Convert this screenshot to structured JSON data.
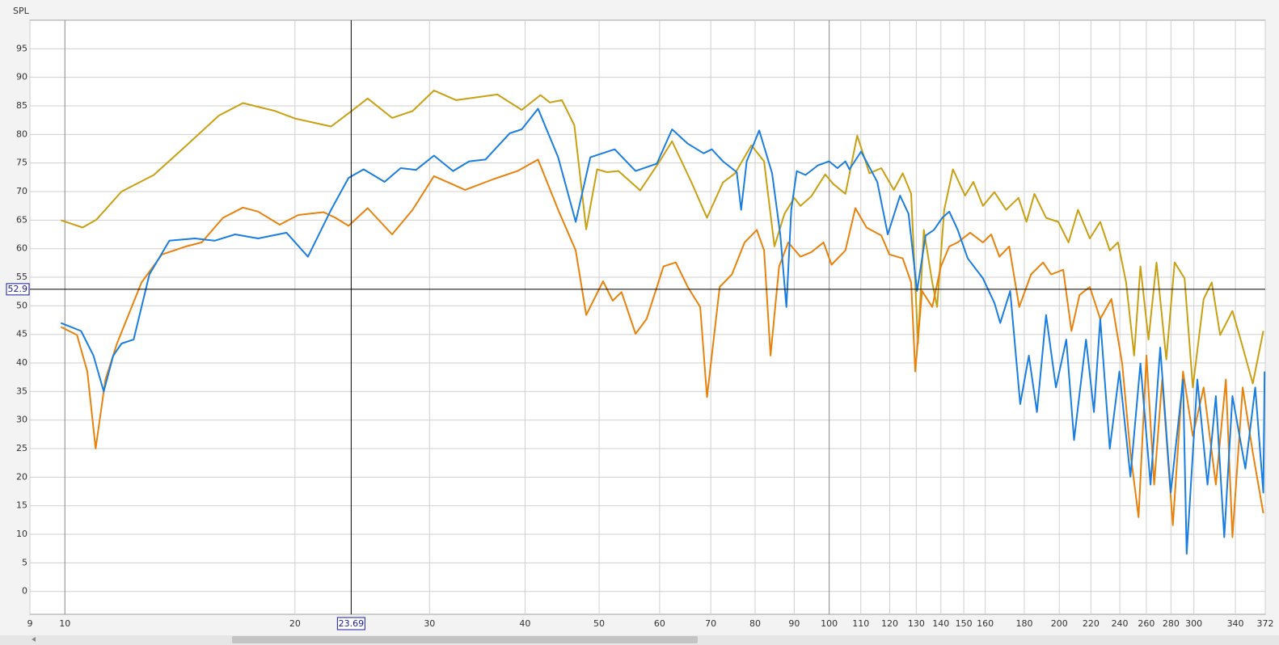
{
  "chart_data": {
    "type": "line",
    "y_label": "SPL",
    "xscale": "log",
    "grid": true,
    "xlim": [
      9,
      372
    ],
    "ylim": [
      -4,
      100
    ],
    "xticks": [
      9,
      10,
      20,
      30,
      40,
      50,
      60,
      70,
      80,
      90,
      100,
      110,
      120,
      130,
      140,
      150,
      160,
      180,
      200,
      220,
      240,
      260,
      280,
      300,
      340,
      372
    ],
    "yticks": [
      0,
      5,
      10,
      15,
      20,
      25,
      30,
      35,
      40,
      45,
      50,
      55,
      60,
      65,
      70,
      75,
      80,
      85,
      90,
      95
    ],
    "cursor": {
      "x": 23.69,
      "y": 52.9
    },
    "series": [
      {
        "color": "#c9a012",
        "x": [
          9.88,
          10.55,
          11.0,
          11.86,
          13.07,
          14.4,
          15.9,
          17.1,
          18.85,
          20.0,
          22.3,
          23.77,
          24.9,
          26.8,
          28.5,
          30.4,
          32.5,
          36.8,
          39.6,
          41.9,
          43.1,
          44.7,
          46.4,
          48.1,
          49.7,
          51.2,
          53.0,
          56.6,
          60.0,
          62.3,
          66.0,
          69.2,
          72.6,
          75.3,
          79.1,
          82.2,
          84.8,
          87.4,
          90.0,
          91.7,
          94.8,
          98.8,
          101.3,
          105,
          108.8,
          112.9,
          117.0,
          121.5,
          124.8,
          128,
          130.7,
          133,
          136.4,
          138.4,
          141.4,
          145.2,
          150.6,
          154.4,
          158.9,
          164.5,
          170.4,
          176.9,
          181.2,
          185.6,
          192.2,
          199.4,
          205.7,
          211.6,
          219.3,
          226.3,
          232.9,
          238.7,
          244.6,
          250.6,
          255.4,
          261.7,
          268.1,
          276.1,
          283.1,
          291.7,
          299.1,
          309.0,
          316.6,
          324.7,
          337.0,
          345.4,
          358.3,
          369.8
        ],
        "values": [
          65.0,
          63.7,
          65.1,
          70,
          72.9,
          78,
          83.3,
          85.5,
          84.1,
          82.8,
          81.4,
          84.2,
          86.3,
          82.9,
          84.1,
          87.7,
          86.0,
          87.0,
          84.3,
          86.9,
          85.6,
          86.0,
          81.6,
          63.4,
          73.9,
          73.4,
          73.6,
          70.2,
          75.3,
          78.8,
          71.7,
          65.4,
          71.6,
          73.2,
          78.1,
          75.3,
          60.4,
          66.1,
          68.9,
          67.5,
          69.2,
          73.0,
          71.3,
          69.6,
          79.8,
          73.2,
          74.1,
          70.3,
          73.2,
          69.6,
          43.4,
          63.3,
          54.1,
          49.8,
          66.8,
          73.9,
          69.3,
          71.7,
          67.5,
          69.9,
          66.8,
          68.9,
          64.7,
          69.6,
          65.4,
          64.7,
          61.1,
          66.8,
          61.8,
          64.7,
          59.7,
          61.1,
          54.1,
          41.3,
          56.9,
          44.1,
          57.6,
          40.6,
          57.6,
          54.8,
          35.7,
          51.2,
          54.1,
          44.9,
          49.1,
          44.1,
          36.4,
          45.6
        ]
      },
      {
        "color": "#e8820c",
        "x": [
          9.88,
          10.37,
          10.7,
          10.97,
          11.3,
          11.7,
          12.6,
          13.4,
          14.4,
          15.1,
          16.1,
          17.1,
          17.9,
          19.1,
          20.2,
          21.8,
          22.6,
          23.5,
          24.9,
          26.8,
          28.5,
          30.4,
          33.4,
          36.4,
          39.1,
          41.6,
          44.2,
          46.6,
          48.1,
          50.6,
          52.1,
          53.5,
          55.8,
          57.7,
          60.7,
          63.0,
          65.3,
          67.8,
          69.2,
          71.9,
          74.6,
          77.5,
          80.4,
          82.2,
          83.8,
          86.0,
          88.4,
          91.7,
          94.8,
          98.3,
          100.7,
          105,
          108.2,
          111.9,
          117.0,
          119.9,
          124.8,
          128.0,
          129.6,
          132.3,
          136.4,
          140.0,
          143.6,
          147.3,
          152.9,
          158.9,
          162.9,
          167.0,
          172.0,
          177.3,
          183.7,
          190.5,
          195.2,
          202.4,
          207.5,
          212.6,
          219.3,
          226.3,
          234.0,
          241.7,
          247.8,
          254,
          260.1,
          266.2,
          272.7,
          281.6,
          290.4,
          299.1,
          309.0,
          320.6,
          330.4,
          337.0,
          347.6,
          358.3,
          369.8
        ],
        "values": [
          46.3,
          44.9,
          38.5,
          25.0,
          37.1,
          43.4,
          54.1,
          59.0,
          60.4,
          61.1,
          65.4,
          67.2,
          66.5,
          64.2,
          65.9,
          66.4,
          65.4,
          64.0,
          67.1,
          62.5,
          66.8,
          72.7,
          70.3,
          72.2,
          73.6,
          75.6,
          66.8,
          59.7,
          48.4,
          54.3,
          50.9,
          52.4,
          45.1,
          47.7,
          56.9,
          57.6,
          53.3,
          49.8,
          34.0,
          53.3,
          55.5,
          61.1,
          63.3,
          59.7,
          41.3,
          56.9,
          61.1,
          58.6,
          59.4,
          61.1,
          57.2,
          59.7,
          67.1,
          63.7,
          62.3,
          59.0,
          58.3,
          54.1,
          38.5,
          52.6,
          49.8,
          56.9,
          60.4,
          61.1,
          62.8,
          61.1,
          62.5,
          58.6,
          60.4,
          49.8,
          55.5,
          57.6,
          55.5,
          56.3,
          45.6,
          51.9,
          53.3,
          47.7,
          51.2,
          39.9,
          24.3,
          13.0,
          41.3,
          18.7,
          37.1,
          11.6,
          38.5,
          27.2,
          35.7,
          18.7,
          37.1,
          9.5,
          35.7,
          24.3,
          13.7
        ]
      },
      {
        "color": "#1a7de0",
        "x": [
          9.88,
          10.5,
          10.9,
          11.24,
          11.57,
          11.86,
          12.3,
          12.9,
          13.7,
          14.8,
          15.7,
          16.7,
          17.9,
          19.5,
          20.8,
          22.3,
          23.5,
          24.6,
          26.2,
          27.5,
          28.8,
          30.4,
          32.2,
          33.8,
          35.5,
          38.2,
          39.6,
          41.6,
          44.2,
          46.6,
          48.7,
          52.4,
          55.8,
          59.5,
          62.3,
          65.3,
          68.5,
          70.2,
          72.6,
          75.7,
          76.7,
          78.0,
          81.0,
          84.2,
          86.3,
          87.9,
          89.2,
          90.7,
          93.1,
          96.7,
          100,
          102.5,
          105,
          106.3,
          110.1,
          115.6,
          119.3,
          123.8,
          127.0,
          130.3,
          133.7,
          137.1,
          140.6,
          143.6,
          147.3,
          151.8,
          158.9,
          164.5,
          167.4,
          172.5,
          177.8,
          182.5,
          187.0,
          192.2,
          198.0,
          204.3,
          209.1,
          216.8,
          222.0,
          226.3,
          232.9,
          239.7,
          247.8,
          255.4,
          263.3,
          271.1,
          279.8,
          290.4,
          293.6,
          303.2,
          312.6,
          320.6,
          328.8,
          337.0,
          350.4,
          360.9,
          369.8,
          371.3
        ],
        "values": [
          47.0,
          45.6,
          41.3,
          35.0,
          41.3,
          43.4,
          44.1,
          55.5,
          61.4,
          61.8,
          61.4,
          62.5,
          61.8,
          62.8,
          58.6,
          66.8,
          72.4,
          73.9,
          71.7,
          74.1,
          73.8,
          76.3,
          73.6,
          75.3,
          75.6,
          80.2,
          80.9,
          84.5,
          76.0,
          64.7,
          76.0,
          77.4,
          73.6,
          74.9,
          80.9,
          78.4,
          76.7,
          77.4,
          75.3,
          73.4,
          66.8,
          75.3,
          80.7,
          73.2,
          62.5,
          49.8,
          66.8,
          73.6,
          72.9,
          74.6,
          75.3,
          74.1,
          75.3,
          73.9,
          77.0,
          71.7,
          62.5,
          69.3,
          66.1,
          52.6,
          62.3,
          63.3,
          65.4,
          66.5,
          63.3,
          58.3,
          54.8,
          50.5,
          47.0,
          52.6,
          32.8,
          41.3,
          31.4,
          48.4,
          35.7,
          44.1,
          26.5,
          44.1,
          31.4,
          47.7,
          25.0,
          38.5,
          20.1,
          39.9,
          18.7,
          42.7,
          17.3,
          37.1,
          6.6,
          37.1,
          18.7,
          34.2,
          9.5,
          34.2,
          21.5,
          35.7,
          17.3,
          38.5
        ]
      }
    ]
  }
}
